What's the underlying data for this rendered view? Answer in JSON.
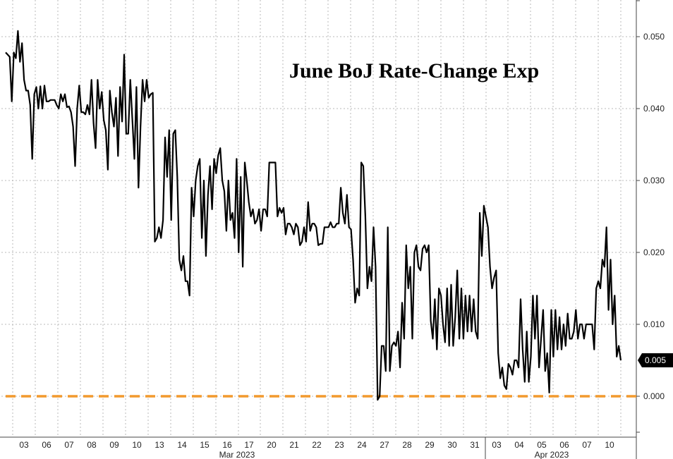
{
  "chart_data": {
    "type": "line",
    "title": "June BoJ Rate-Change Exp",
    "xlabel": "",
    "ylabel": "",
    "ylim": [
      -0.005,
      0.055
    ],
    "yticks": [
      "0.050",
      "0.040",
      "0.030",
      "0.020",
      "0.010",
      "0.000"
    ],
    "grid": true,
    "x_labels": [
      "03",
      "06",
      "07",
      "08",
      "09",
      "10",
      "13",
      "14",
      "15",
      "16",
      "17",
      "20",
      "21",
      "22",
      "23",
      "24",
      "27",
      "28",
      "29",
      "30",
      "31",
      "03",
      "04",
      "05",
      "06",
      "07",
      "10"
    ],
    "months": [
      "Mar 2023",
      "Apr 2023"
    ],
    "last_value_label": "0.005",
    "series": [
      {
        "values": [
          0.0478,
          0.0475,
          0.0472,
          0.041,
          0.0478,
          0.047,
          0.0508,
          0.0465,
          0.0491,
          0.044,
          0.0425,
          0.0425,
          0.0405,
          0.033,
          0.042,
          0.043,
          0.04,
          0.0431,
          0.04,
          0.0432,
          0.041,
          0.041,
          0.0412,
          0.0412,
          0.0412,
          0.0405,
          0.04,
          0.042,
          0.041,
          0.042,
          0.0402,
          0.0403,
          0.0395,
          0.0375,
          0.032,
          0.04,
          0.0432,
          0.0395,
          0.0395,
          0.0392,
          0.0405,
          0.0392,
          0.044,
          0.038,
          0.0345,
          0.044,
          0.04,
          0.0423,
          0.0384,
          0.037,
          0.0315,
          0.0425,
          0.0395,
          0.0375,
          0.0415,
          0.0334,
          0.043,
          0.0382,
          0.0475,
          0.0365,
          0.0365,
          0.044,
          0.0385,
          0.033,
          0.043,
          0.029,
          0.0375,
          0.044,
          0.041,
          0.044,
          0.0415,
          0.042,
          0.0422,
          0.0215,
          0.022,
          0.0235,
          0.022,
          0.0245,
          0.036,
          0.0305,
          0.037,
          0.0245,
          0.0365,
          0.037,
          0.0305,
          0.019,
          0.0175,
          0.0195,
          0.016,
          0.016,
          0.014,
          0.029,
          0.025,
          0.03,
          0.032,
          0.033,
          0.022,
          0.03,
          0.0195,
          0.028,
          0.032,
          0.026,
          0.033,
          0.031,
          0.0335,
          0.0345,
          0.03,
          0.0285,
          0.023,
          0.03,
          0.0245,
          0.0255,
          0.022,
          0.033,
          0.02,
          0.0305,
          0.018,
          0.0325,
          0.03,
          0.027,
          0.025,
          0.026,
          0.024,
          0.0245,
          0.026,
          0.023,
          0.026,
          0.026,
          0.025,
          0.0325,
          0.0325,
          0.0325,
          0.0325,
          0.025,
          0.0262,
          0.0255,
          0.0262,
          0.0225,
          0.024,
          0.024,
          0.0235,
          0.0225,
          0.024,
          0.0235,
          0.021,
          0.0215,
          0.0235,
          0.0215,
          0.027,
          0.023,
          0.024,
          0.024,
          0.0235,
          0.021,
          0.0212,
          0.0212,
          0.0235,
          0.0235,
          0.0235,
          0.0242,
          0.0235,
          0.0235,
          0.024,
          0.024,
          0.029,
          0.0255,
          0.024,
          0.028,
          0.0235,
          0.0232,
          0.019,
          0.013,
          0.015,
          0.014,
          0.0325,
          0.032,
          0.025,
          0.015,
          0.018,
          0.016,
          0.0235,
          0.018,
          -0.0005,
          0.0,
          0.007,
          0.007,
          0.0035,
          0.0235,
          0.0035,
          0.007,
          0.0075,
          0.007,
          0.009,
          0.004,
          0.013,
          0.008,
          0.021,
          0.015,
          0.018,
          0.008,
          0.02,
          0.021,
          0.018,
          0.0175,
          0.0205,
          0.021,
          0.02,
          0.021,
          0.0105,
          0.008,
          0.0135,
          0.0065,
          0.015,
          0.014,
          0.01,
          0.0075,
          0.015,
          0.007,
          0.0155,
          0.007,
          0.011,
          0.0175,
          0.008,
          0.015,
          0.008,
          0.014,
          0.009,
          0.014,
          0.009,
          0.0135,
          0.009,
          0.008,
          0.0255,
          0.0195,
          0.0265,
          0.025,
          0.0235,
          0.018,
          0.015,
          0.0165,
          0.0175,
          0.006,
          0.0025,
          0.004,
          0.0015,
          0.001,
          0.0045,
          0.004,
          0.003,
          0.005,
          0.005,
          0.004,
          0.0135,
          0.0065,
          0.002,
          0.009,
          0.002,
          0.0055,
          0.014,
          0.008,
          0.014,
          0.004,
          0.008,
          0.012,
          0.0035,
          0.006,
          0.0005,
          0.012,
          0.0055,
          0.012,
          0.0065,
          0.011,
          0.0065,
          0.01,
          0.007,
          0.0115,
          0.008,
          0.008,
          0.009,
          0.012,
          0.008,
          0.01,
          0.01,
          0.008,
          0.01,
          0.01,
          0.01,
          0.01,
          0.0065,
          0.015,
          0.016,
          0.015,
          0.019,
          0.018,
          0.0235,
          0.012,
          0.019,
          0.01,
          0.014,
          0.0055,
          0.007,
          0.005
        ]
      },
      {
        "name": "",
        "values": [
          0.0,
          0.0
        ],
        "style": "dashed",
        "color": "#f29a2e"
      }
    ]
  },
  "colors": {
    "line": "#000000",
    "zero_line": "#f29a2e",
    "grid": "#b8b8b8",
    "label_bg": "#000000"
  }
}
